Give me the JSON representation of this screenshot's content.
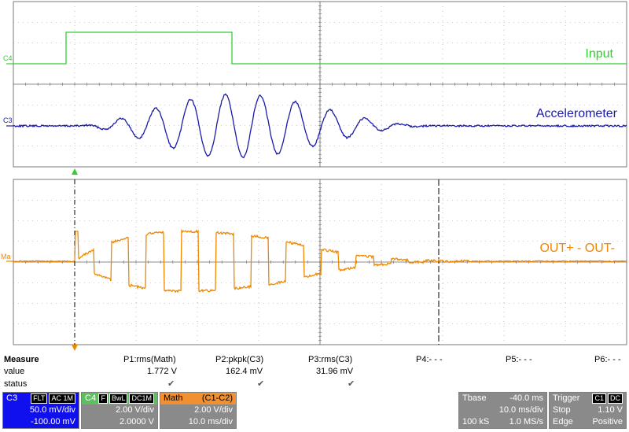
{
  "colors": {
    "input": "#33cc33",
    "accel": "#1a1aaa",
    "math": "#ee8800",
    "grid": "#777777",
    "panel_gray": "#8a8a8a",
    "c3_blue": "#1010ee",
    "c4_green": "#5fbf5f",
    "math_orange": "#f09030"
  },
  "channels": {
    "c4_tag": "C4",
    "c3_tag": "C3",
    "math_tag": "Ma",
    "input_label": "Input",
    "accel_label": "Accelerometer",
    "math_label": "OUT+ - OUT-"
  },
  "measure": {
    "title": "Measure",
    "value_label": "value",
    "status_label": "status",
    "p1": {
      "name": "P1:rms(Math)",
      "value": "1.772 V",
      "status": "check"
    },
    "p2": {
      "name": "P2:pkpk(C3)",
      "value": "162.4 mV",
      "status": "check"
    },
    "p3": {
      "name": "P3:rms(C3)",
      "value": "31.96 mV",
      "status": "check"
    },
    "p4": {
      "name": "P4:- - -"
    },
    "p5": {
      "name": "P5:- - -"
    },
    "p6": {
      "name": "P6:- - -"
    },
    "check_glyph": "✔"
  },
  "panels": {
    "c3": {
      "name": "C3",
      "flags": [
        "FLT",
        "AC 1M"
      ],
      "vdiv": "50.0 mV/div",
      "offset": "-100.00 mV"
    },
    "c4": {
      "name": "C4",
      "flags": [
        "F",
        "BwL",
        "DC1M"
      ],
      "vdiv": "2.00 V/div",
      "offset": "2.0000 V"
    },
    "math": {
      "name": "Math",
      "expr": "(C1-C2)",
      "vdiv": "2.00 V/div",
      "tdiv": "10.0 ms/div"
    },
    "tbase": {
      "label": "Tbase",
      "delay": "-40.0 ms",
      "tdiv": "10.0 ms/div",
      "samples": "100 kS",
      "rate": "1.0 MS/s"
    },
    "trigger": {
      "label": "Trigger",
      "src": "C1",
      "coupling": "DC",
      "mode": "Stop",
      "level": "1.10 V",
      "type": "Edge",
      "slope": "Positive"
    }
  }
}
